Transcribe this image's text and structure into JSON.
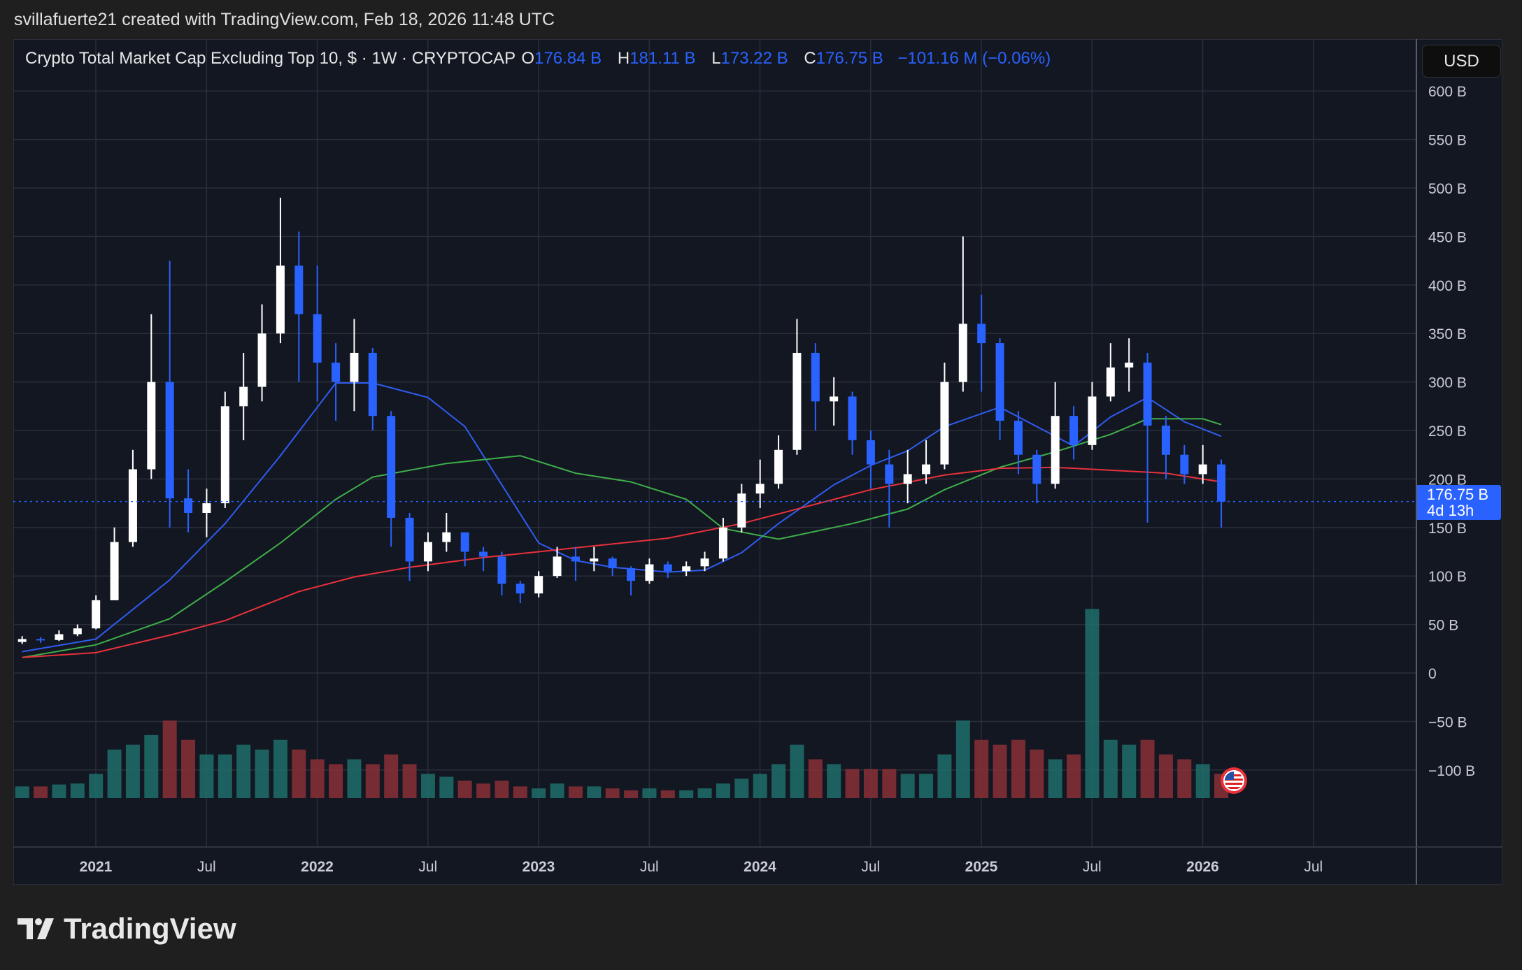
{
  "header": {
    "credit": "svillafuerte21 created with TradingView.com, Feb 18, 2026 11:48 UTC"
  },
  "legend": {
    "symbol": "Crypto Total Market Cap Excluding Top 10, $ · 1W · CRYPTOCAP",
    "o_label": "O",
    "o": "176.84 B",
    "h_label": "H",
    "h": "181.11 B",
    "l_label": "L",
    "l": "173.22 B",
    "c_label": "C",
    "c": "176.75 B",
    "change": "−101.16 M (−0.06%)"
  },
  "currency_button": "USD",
  "last_price": {
    "value": "176.75 B",
    "countdown": "4d 13h"
  },
  "brand": "TradingView",
  "colors": {
    "up": "#ffffff",
    "down": "#2962ff",
    "ma_blue": "#2f5cf0",
    "ma_green": "#3fae49",
    "ma_red": "#e8313b",
    "vol_up": "#1f6f6a",
    "vol_down": "#8a2f35",
    "background": "#131722",
    "grid": "#2a2e39"
  },
  "icons": {
    "flag": "us-flag-icon",
    "logo": "tradingview-logo-icon"
  },
  "chart_data": {
    "type": "candlestick",
    "interval": "1W",
    "grid": true,
    "ylim": [
      -100,
      600
    ],
    "y_ticks": [
      "600 B",
      "550 B",
      "500 B",
      "450 B",
      "400 B",
      "350 B",
      "300 B",
      "250 B",
      "200 B",
      "150 B",
      "100 B",
      "50 B",
      "0",
      "−50 B",
      "−100 B"
    ],
    "y_tick_values": [
      600,
      550,
      500,
      450,
      400,
      350,
      300,
      250,
      200,
      150,
      100,
      50,
      0,
      -50,
      -100
    ],
    "x_ticks": [
      {
        "label": "2021",
        "date": "2021-01",
        "bold": true
      },
      {
        "label": "Jul",
        "date": "2021-07"
      },
      {
        "label": "2022",
        "date": "2022-01",
        "bold": true
      },
      {
        "label": "Jul",
        "date": "2022-07"
      },
      {
        "label": "2023",
        "date": "2023-01",
        "bold": true
      },
      {
        "label": "Jul",
        "date": "2023-07"
      },
      {
        "label": "2024",
        "date": "2024-01",
        "bold": true
      },
      {
        "label": "Jul",
        "date": "2024-07"
      },
      {
        "label": "2025",
        "date": "2025-01",
        "bold": true
      },
      {
        "label": "Jul",
        "date": "2025-07"
      },
      {
        "label": "2026",
        "date": "2026-01",
        "bold": true
      },
      {
        "label": "Jul",
        "date": "2026-07"
      }
    ],
    "candles_start": "2020-09",
    "candles_ohlc_billions": [
      [
        32,
        38,
        30,
        35
      ],
      [
        35,
        37,
        31,
        34
      ],
      [
        34,
        44,
        33,
        40
      ],
      [
        40,
        50,
        38,
        46
      ],
      [
        46,
        80,
        45,
        75
      ],
      [
        75,
        150,
        75,
        135
      ],
      [
        135,
        230,
        130,
        210
      ],
      [
        210,
        370,
        200,
        300
      ],
      [
        300,
        425,
        150,
        180
      ],
      [
        180,
        210,
        145,
        165
      ],
      [
        165,
        190,
        140,
        175
      ],
      [
        175,
        290,
        170,
        275
      ],
      [
        275,
        330,
        240,
        295
      ],
      [
        295,
        380,
        280,
        350
      ],
      [
        350,
        490,
        340,
        420
      ],
      [
        420,
        455,
        300,
        370
      ],
      [
        370,
        420,
        280,
        320
      ],
      [
        320,
        340,
        260,
        300
      ],
      [
        300,
        365,
        270,
        330
      ],
      [
        330,
        335,
        250,
        265
      ],
      [
        265,
        270,
        130,
        160
      ],
      [
        160,
        165,
        95,
        115
      ],
      [
        115,
        145,
        105,
        135
      ],
      [
        135,
        165,
        125,
        145
      ],
      [
        145,
        145,
        110,
        125
      ],
      [
        125,
        130,
        105,
        120
      ],
      [
        120,
        125,
        80,
        92
      ],
      [
        92,
        95,
        72,
        82
      ],
      [
        82,
        105,
        78,
        100
      ],
      [
        100,
        130,
        98,
        120
      ],
      [
        120,
        130,
        95,
        115
      ],
      [
        115,
        130,
        105,
        118
      ],
      [
        118,
        120,
        100,
        108
      ],
      [
        108,
        110,
        80,
        95
      ],
      [
        95,
        118,
        92,
        112
      ],
      [
        112,
        115,
        98,
        105
      ],
      [
        105,
        115,
        100,
        110
      ],
      [
        110,
        125,
        105,
        118
      ],
      [
        118,
        160,
        115,
        150
      ],
      [
        150,
        195,
        145,
        185
      ],
      [
        185,
        220,
        170,
        195
      ],
      [
        195,
        245,
        190,
        230
      ],
      [
        230,
        365,
        225,
        330
      ],
      [
        330,
        340,
        250,
        280
      ],
      [
        280,
        305,
        255,
        285
      ],
      [
        285,
        290,
        225,
        240
      ],
      [
        240,
        250,
        190,
        215
      ],
      [
        215,
        230,
        150,
        195
      ],
      [
        195,
        230,
        175,
        205
      ],
      [
        205,
        240,
        195,
        215
      ],
      [
        215,
        320,
        210,
        300
      ],
      [
        300,
        450,
        290,
        360
      ],
      [
        360,
        390,
        290,
        340
      ],
      [
        340,
        345,
        240,
        260
      ],
      [
        260,
        270,
        205,
        225
      ],
      [
        225,
        230,
        175,
        195
      ],
      [
        195,
        300,
        190,
        265
      ],
      [
        265,
        275,
        220,
        235
      ],
      [
        235,
        300,
        230,
        285
      ],
      [
        285,
        340,
        280,
        315
      ],
      [
        315,
        345,
        290,
        320
      ],
      [
        320,
        330,
        155,
        255
      ],
      [
        255,
        265,
        200,
        225
      ],
      [
        225,
        235,
        195,
        205
      ],
      [
        205,
        235,
        195,
        215
      ],
      [
        215,
        220,
        150,
        176.75
      ]
    ],
    "volume_relative": [
      12,
      12,
      14,
      15,
      25,
      50,
      55,
      65,
      80,
      60,
      45,
      45,
      55,
      50,
      60,
      50,
      40,
      35,
      40,
      35,
      45,
      35,
      25,
      22,
      18,
      15,
      18,
      12,
      10,
      15,
      12,
      12,
      10,
      8,
      10,
      8,
      8,
      10,
      15,
      20,
      25,
      35,
      55,
      40,
      35,
      30,
      30,
      30,
      25,
      25,
      45,
      80,
      60,
      55,
      60,
      50,
      40,
      45,
      195,
      60,
      55,
      60,
      45,
      40,
      35,
      25
    ],
    "moving_averages": [
      {
        "color": "blue",
        "points": [
          [
            "2020-09",
            22
          ],
          [
            "2021-01",
            35
          ],
          [
            "2021-05",
            96
          ],
          [
            "2021-08",
            154
          ],
          [
            "2021-11",
            224
          ],
          [
            "2022-01",
            274
          ],
          [
            "2022-02",
            299
          ],
          [
            "2022-04",
            299
          ],
          [
            "2022-07",
            284
          ],
          [
            "2022-09",
            254
          ],
          [
            "2022-11",
            194
          ],
          [
            "2023-01",
            134
          ],
          [
            "2023-03",
            116
          ],
          [
            "2023-05",
            109
          ],
          [
            "2023-08",
            104
          ],
          [
            "2023-10",
            106
          ],
          [
            "2023-12",
            124
          ],
          [
            "2024-02",
            154
          ],
          [
            "2024-05",
            194
          ],
          [
            "2024-07",
            214
          ],
          [
            "2024-09",
            229
          ],
          [
            "2024-11",
            254
          ],
          [
            "2025-02",
            274
          ],
          [
            "2025-04",
            254
          ],
          [
            "2025-06",
            234
          ],
          [
            "2025-08",
            264
          ],
          [
            "2025-10",
            284
          ],
          [
            "2025-12",
            259
          ],
          [
            "2026-02",
            244
          ]
        ]
      },
      {
        "color": "green",
        "points": [
          [
            "2020-09",
            16
          ],
          [
            "2021-01",
            29
          ],
          [
            "2021-05",
            56
          ],
          [
            "2021-08",
            94
          ],
          [
            "2021-11",
            134
          ],
          [
            "2022-02",
            179
          ],
          [
            "2022-04",
            202
          ],
          [
            "2022-08",
            216
          ],
          [
            "2022-12",
            224
          ],
          [
            "2023-03",
            206
          ],
          [
            "2023-06",
            197
          ],
          [
            "2023-09",
            179
          ],
          [
            "2023-11",
            149
          ],
          [
            "2024-02",
            138
          ],
          [
            "2024-06",
            154
          ],
          [
            "2024-09",
            169
          ],
          [
            "2024-11",
            189
          ],
          [
            "2025-02",
            212
          ],
          [
            "2025-05",
            228
          ],
          [
            "2025-08",
            246
          ],
          [
            "2025-10",
            262
          ],
          [
            "2026-01",
            262
          ],
          [
            "2026-02",
            256
          ]
        ]
      },
      {
        "color": "red",
        "points": [
          [
            "2020-09",
            16
          ],
          [
            "2021-01",
            21
          ],
          [
            "2021-05",
            39
          ],
          [
            "2021-08",
            54
          ],
          [
            "2021-12",
            84
          ],
          [
            "2022-03",
            99
          ],
          [
            "2022-06",
            109
          ],
          [
            "2022-10",
            119
          ],
          [
            "2023-03",
            129
          ],
          [
            "2023-08",
            139
          ],
          [
            "2023-12",
            154
          ],
          [
            "2024-04",
            174
          ],
          [
            "2024-07",
            189
          ],
          [
            "2024-11",
            204
          ],
          [
            "2025-02",
            211
          ],
          [
            "2025-05",
            212
          ],
          [
            "2025-08",
            209
          ],
          [
            "2025-11",
            206
          ],
          [
            "2026-02",
            197
          ]
        ]
      }
    ]
  }
}
